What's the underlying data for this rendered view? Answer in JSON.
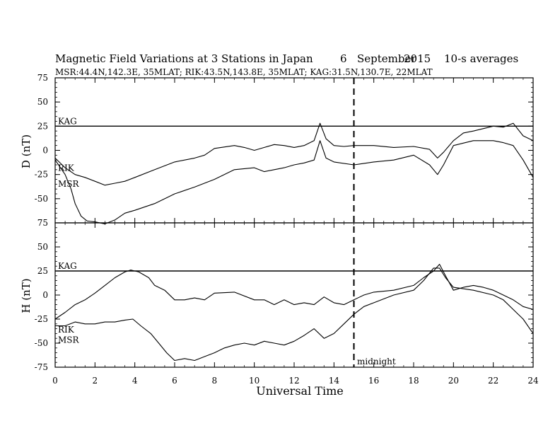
{
  "chart_data": {
    "type": "line",
    "title": "Magnetic Field Variations at 3 Stations in Japan",
    "date_day": "6",
    "date_month": "September",
    "date_year": "2015",
    "averaging": "10-s averages",
    "subtitle": "MSR:44.4N,142.3E, 35MLAT;  RIK:43.5N,143.8E, 35MLAT;  KAG:31.5N,130.7E, 22MLAT",
    "xlabel": "Universal Time",
    "xlim": [
      0,
      24
    ],
    "xticks": [
      "0",
      "2",
      "4",
      "6",
      "8",
      "10",
      "12",
      "14",
      "16",
      "18",
      "20",
      "22",
      "24"
    ],
    "annotation": {
      "text": "midnight",
      "x": 15
    },
    "panels": [
      {
        "ylabel": "D (nT)",
        "ylim": [
          -75,
          75
        ],
        "yticks": [
          "75",
          "50",
          "25",
          "0",
          "-25",
          "-50",
          "-75"
        ],
        "series": [
          {
            "name": "KAG",
            "x": [
              0,
              24
            ],
            "y": [
              25,
              25
            ]
          },
          {
            "name": "RIK",
            "x": [
              0,
              0.5,
              1,
              1.5,
              2,
              2.5,
              3,
              3.5,
              4,
              5,
              6,
              7,
              7.5,
              8,
              9,
              9.5,
              10,
              10.5,
              11,
              11.5,
              12,
              12.5,
              13,
              13.3,
              13.6,
              14,
              14.5,
              15,
              16,
              17,
              18,
              18.8,
              19.2,
              19.5,
              20,
              20.5,
              21,
              22,
              22.5,
              23,
              23.5,
              24
            ],
            "y": [
              -8,
              -18,
              -25,
              -28,
              -32,
              -36,
              -34,
              -32,
              -28,
              -20,
              -12,
              -8,
              -5,
              2,
              5,
              3,
              0,
              3,
              6,
              5,
              3,
              5,
              10,
              28,
              12,
              5,
              4,
              5,
              5,
              3,
              4,
              1,
              -8,
              -2,
              10,
              18,
              20,
              25,
              24,
              28,
              15,
              10
            ]
          },
          {
            "name": "MSR",
            "x": [
              0,
              0.5,
              0.8,
              1,
              1.3,
              1.6,
              2,
              2.5,
              3,
              3.5,
              4,
              5,
              6,
              7,
              8,
              9,
              10,
              10.5,
              11,
              11.5,
              12,
              12.5,
              13,
              13.3,
              13.6,
              14,
              15,
              16,
              17,
              18,
              18.8,
              19.2,
              19.5,
              20,
              21,
              22,
              22.5,
              23,
              23.5,
              24
            ],
            "y": [
              -10,
              -25,
              -40,
              -55,
              -68,
              -73,
              -74,
              -76,
              -72,
              -65,
              -62,
              -55,
              -45,
              -38,
              -30,
              -20,
              -18,
              -22,
              -20,
              -18,
              -15,
              -13,
              -10,
              10,
              -8,
              -12,
              -15,
              -12,
              -10,
              -5,
              -15,
              -25,
              -15,
              5,
              10,
              10,
              8,
              5,
              -10,
              -28
            ]
          }
        ]
      },
      {
        "ylabel": "H (nT)",
        "ylim": [
          -75,
          75
        ],
        "yticks": [
          "75",
          "50",
          "25",
          "0",
          "-25",
          "-50",
          "-75"
        ],
        "series": [
          {
            "name": "KAG",
            "x": [
              0,
              24
            ],
            "y": [
              25,
              25
            ]
          },
          {
            "name": "RIK",
            "x": [
              0,
              0.5,
              1,
              1.5,
              2,
              2.5,
              3,
              3.5,
              3.8,
              4.2,
              4.7,
              5,
              5.5,
              6,
              6.5,
              7,
              7.5,
              8,
              9,
              10,
              10.5,
              11,
              11.5,
              12,
              12.5,
              13,
              13.5,
              14,
              14.5,
              15,
              15.5,
              16,
              17,
              18,
              18.5,
              19,
              19.3,
              19.6,
              20,
              20.5,
              21,
              21.5,
              22,
              22.5,
              23,
              23.5,
              24
            ],
            "y": [
              -25,
              -18,
              -10,
              -5,
              2,
              10,
              18,
              24,
              26,
              24,
              18,
              10,
              5,
              -5,
              -5,
              -3,
              -5,
              2,
              3,
              -5,
              -5,
              -10,
              -5,
              -10,
              -8,
              -10,
              -2,
              -8,
              -10,
              -5,
              0,
              3,
              5,
              10,
              18,
              25,
              32,
              20,
              5,
              8,
              10,
              8,
              5,
              0,
              -5,
              -12,
              -15
            ]
          },
          {
            "name": "MSR",
            "x": [
              0,
              0.5,
              1,
              1.5,
              2,
              2.5,
              3,
              3.5,
              3.9,
              4.3,
              4.8,
              5.2,
              5.6,
              6,
              6.5,
              7,
              7.5,
              8,
              8.5,
              9,
              9.5,
              10,
              10.5,
              11,
              11.5,
              12,
              12.5,
              13,
              13.5,
              14,
              14.5,
              15,
              15.5,
              16,
              17,
              18,
              18.5,
              19,
              19.3,
              19.6,
              20,
              21,
              22,
              22.5,
              23,
              23.5,
              24
            ],
            "y": [
              -32,
              -32,
              -28,
              -30,
              -30,
              -28,
              -28,
              -26,
              -25,
              -32,
              -40,
              -50,
              -60,
              -68,
              -66,
              -68,
              -64,
              -60,
              -55,
              -52,
              -50,
              -52,
              -48,
              -50,
              -52,
              -48,
              -42,
              -35,
              -45,
              -40,
              -30,
              -20,
              -12,
              -8,
              0,
              5,
              15,
              28,
              28,
              18,
              8,
              5,
              0,
              -5,
              -15,
              -25,
              -40
            ]
          }
        ]
      }
    ],
    "grid": false,
    "legend": "inline labels at left"
  }
}
